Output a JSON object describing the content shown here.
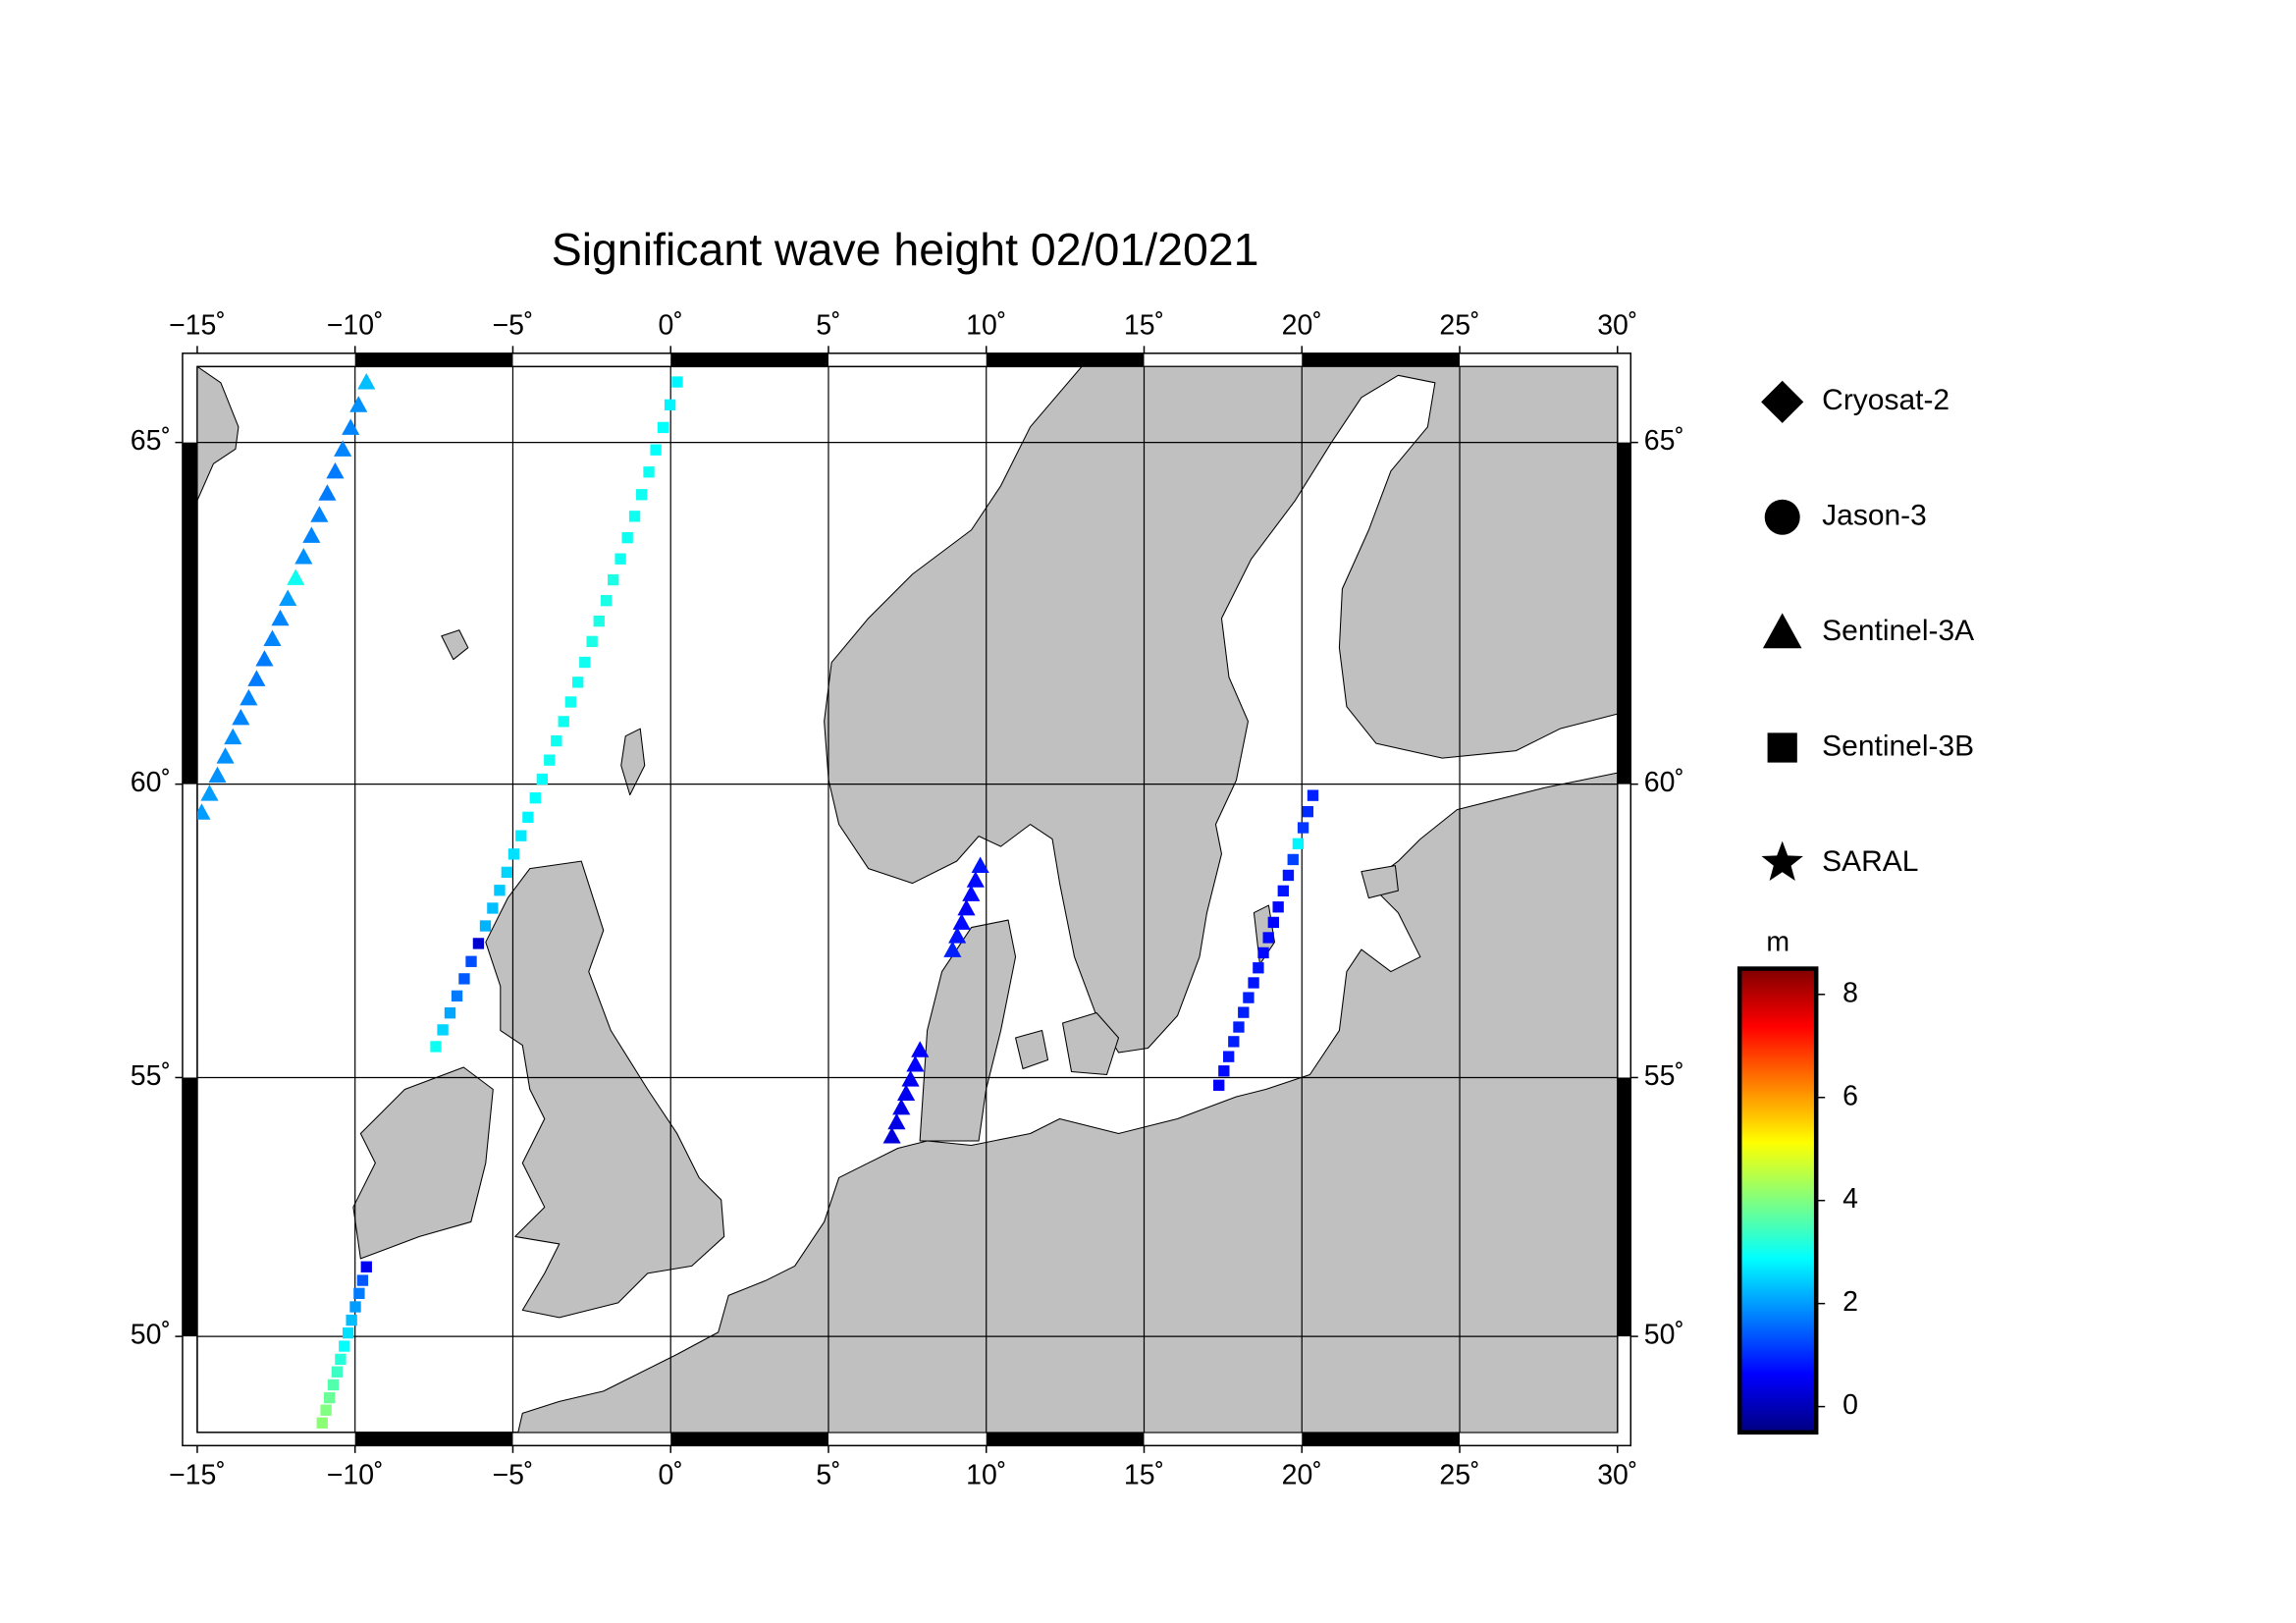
{
  "chart_data": {
    "type": "map",
    "title": "Significant wave height 02/01/2021",
    "projection": "mercator",
    "xlim": [
      -15,
      30
    ],
    "ylim": [
      48,
      66
    ],
    "xticks": [
      {
        "value": -15,
        "label": "−15˚"
      },
      {
        "value": -10,
        "label": "−10˚"
      },
      {
        "value": -5,
        "label": "−5˚"
      },
      {
        "value": 0,
        "label": "0˚"
      },
      {
        "value": 5,
        "label": "5˚"
      },
      {
        "value": 10,
        "label": "10˚"
      },
      {
        "value": 15,
        "label": "15˚"
      },
      {
        "value": 20,
        "label": "20˚"
      },
      {
        "value": 25,
        "label": "25˚"
      },
      {
        "value": 30,
        "label": "30˚"
      }
    ],
    "yticks": [
      {
        "value": 50,
        "label": "50˚"
      },
      {
        "value": 55,
        "label": "55˚"
      },
      {
        "value": 60,
        "label": "60˚"
      },
      {
        "value": 65,
        "label": "65˚"
      }
    ],
    "grid": true,
    "legend": "right",
    "series": [
      {
        "name": "Cryosat-2",
        "marker": "diamond",
        "x": [],
        "y": [],
        "values": []
      },
      {
        "name": "Jason-3",
        "marker": "circle",
        "x": [],
        "y": [],
        "values": []
      },
      {
        "name": "Sentinel-3A",
        "marker": "triangle",
        "x": [
          -9.64,
          -9.89,
          -10.14,
          -10.39,
          -10.63,
          -10.88,
          -11.13,
          -11.38,
          -11.63,
          -11.88,
          -12.13,
          -12.37,
          -12.62,
          -12.87,
          -13.12,
          -13.37,
          -13.62,
          -13.87,
          -14.11,
          -14.36,
          -14.61,
          -14.86,
          9.81,
          9.66,
          9.52,
          9.37,
          9.22,
          9.08,
          8.93,
          7.9,
          7.75,
          7.6,
          7.46,
          7.31,
          7.16,
          7.01
        ],
        "y": [
          65.8,
          65.5,
          65.2,
          64.91,
          64.61,
          64.31,
          64.01,
          63.72,
          63.42,
          63.12,
          62.82,
          62.53,
          62.23,
          61.93,
          61.63,
          61.34,
          61.04,
          60.74,
          60.44,
          60.14,
          59.85,
          59.55,
          58.68,
          58.44,
          58.21,
          57.97,
          57.73,
          57.5,
          57.26,
          55.5,
          55.24,
          54.97,
          54.71,
          54.45,
          54.18,
          53.92
        ],
        "values": [
          2.3,
          1.9,
          1.8,
          1.8,
          1.7,
          1.7,
          1.8,
          1.8,
          1.9,
          3.0,
          2.0,
          1.8,
          1.8,
          1.7,
          1.7,
          1.8,
          1.8,
          1.9,
          1.9,
          1.9,
          2.0,
          2.0,
          0.8,
          0.7,
          0.7,
          0.6,
          0.7,
          0.8,
          0.9,
          0.6,
          0.6,
          0.5,
          0.5,
          0.4,
          0.4,
          0.3
        ]
      },
      {
        "name": "Sentinel-3B",
        "marker": "square",
        "x": [
          0.21,
          -0.02,
          -0.24,
          -0.47,
          -0.69,
          -0.92,
          -1.14,
          -1.37,
          -1.59,
          -1.82,
          -2.04,
          -2.27,
          -2.49,
          -2.72,
          -2.94,
          -3.17,
          -3.39,
          -3.62,
          -3.84,
          -4.07,
          -4.29,
          -4.52,
          -4.74,
          -4.97,
          -5.19,
          -5.42,
          -5.64,
          -5.87,
          -6.09,
          -6.32,
          -6.54,
          -6.77,
          -6.99,
          -7.22,
          -7.44,
          -9.64,
          -9.76,
          -9.87,
          -9.99,
          -10.11,
          -10.22,
          -10.34,
          -10.46,
          -10.57,
          -10.69,
          -10.81,
          -10.92,
          -11.04,
          20.35,
          20.19,
          20.04,
          19.88,
          19.72,
          19.57,
          19.41,
          19.25,
          19.1,
          18.94,
          18.78,
          18.62,
          18.47,
          18.31,
          18.15,
          18.0,
          17.84,
          17.68,
          17.53,
          17.37
        ],
        "y": [
          65.8,
          65.5,
          65.2,
          64.9,
          64.6,
          64.29,
          63.99,
          63.69,
          63.39,
          63.09,
          62.79,
          62.49,
          62.19,
          61.88,
          61.58,
          61.28,
          60.98,
          60.68,
          60.38,
          60.08,
          59.78,
          59.47,
          59.17,
          58.87,
          58.57,
          58.27,
          57.97,
          57.67,
          57.37,
          57.06,
          56.76,
          56.46,
          56.16,
          55.86,
          55.56,
          51.4,
          51.13,
          50.87,
          50.6,
          50.33,
          50.07,
          49.8,
          49.53,
          49.27,
          49.0,
          48.73,
          48.47,
          48.2,
          59.82,
          59.56,
          59.3,
          59.04,
          58.78,
          58.52,
          58.26,
          57.99,
          57.73,
          57.47,
          57.21,
          56.95,
          56.69,
          56.43,
          56.17,
          55.91,
          55.65,
          55.38,
          55.12,
          54.86
        ],
        "values": [
          2.8,
          2.8,
          2.9,
          2.9,
          3.0,
          3.0,
          3.0,
          3.0,
          3.0,
          3.1,
          3.1,
          3.1,
          3.1,
          3.0,
          3.0,
          3.0,
          3.0,
          3.0,
          3.0,
          2.9,
          2.9,
          2.8,
          2.7,
          2.6,
          2.5,
          2.4,
          2.3,
          2.2,
          0.2,
          1.3,
          1.4,
          1.7,
          2.1,
          2.5,
          3.0,
          0.5,
          1.4,
          1.7,
          2.0,
          2.3,
          2.6,
          2.9,
          3.2,
          3.4,
          3.6,
          3.8,
          4.0,
          4.1,
          0.9,
          1.0,
          1.1,
          2.8,
          1.2,
          0.8,
          0.8,
          0.7,
          0.6,
          0.7,
          0.7,
          0.8,
          0.8,
          0.9,
          0.9,
          0.9,
          0.9,
          0.8,
          0.7,
          0.6
        ]
      },
      {
        "name": "SARAL",
        "marker": "star",
        "x": [],
        "y": [],
        "values": []
      }
    ],
    "colorbar": {
      "label": "m",
      "colormap": "jet",
      "lim": [
        -0.5,
        8.5
      ],
      "ticks": [
        0,
        2,
        4,
        6,
        8
      ]
    }
  }
}
